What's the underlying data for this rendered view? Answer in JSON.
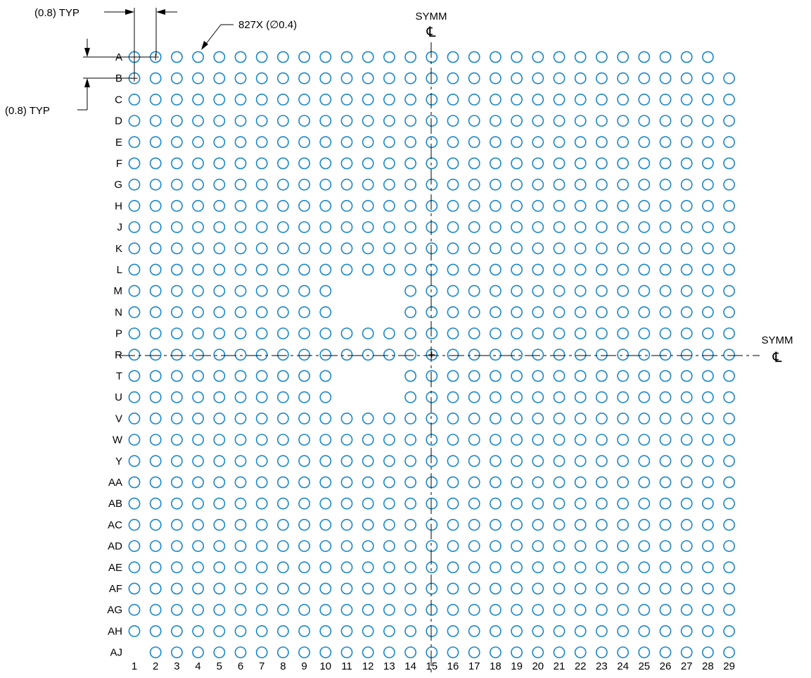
{
  "drawing": {
    "pad_color": "#1a87c9",
    "line_color": "#000000",
    "row_labels": [
      "A",
      "B",
      "C",
      "D",
      "E",
      "F",
      "G",
      "H",
      "J",
      "K",
      "L",
      "M",
      "N",
      "P",
      "R",
      "T",
      "U",
      "V",
      "W",
      "Y",
      "AA",
      "AB",
      "AC",
      "AD",
      "AE",
      "AF",
      "AG",
      "AH",
      "AJ"
    ],
    "column_labels": [
      "1",
      "2",
      "3",
      "4",
      "5",
      "6",
      "7",
      "8",
      "9",
      "10",
      "11",
      "12",
      "13",
      "14",
      "15",
      "16",
      "17",
      "18",
      "19",
      "20",
      "21",
      "22",
      "23",
      "24",
      "25",
      "26",
      "27",
      "28",
      "29"
    ],
    "pitch_top_label": "(0.8) TYP",
    "pitch_left_label": "(0.8) TYP",
    "pad_count_label": "827X (",
    "pad_diameter_symbol": "∅",
    "pad_diameter_value": "0.4)",
    "symm_vertical_label": "SYMM",
    "symm_horizontal_label": "SYMM",
    "centerline_symbol": "℄",
    "depopulated_pads": [
      {
        "row": "A",
        "columns": [
          "29"
        ]
      },
      {
        "row": "M",
        "columns": [
          "11",
          "12",
          "13"
        ]
      },
      {
        "row": "N",
        "columns": [
          "11",
          "12",
          "13"
        ]
      },
      {
        "row": "T",
        "columns": [
          "11",
          "12",
          "13"
        ]
      },
      {
        "row": "U",
        "columns": [
          "11",
          "12",
          "13"
        ]
      },
      {
        "row": "AJ",
        "columns": [
          "1"
        ]
      }
    ],
    "marked_pads": [
      {
        "row": "A",
        "column": "1"
      },
      {
        "row": "A",
        "column": "2"
      },
      {
        "row": "B",
        "column": "1"
      },
      {
        "row": "R",
        "column": "15"
      }
    ]
  }
}
